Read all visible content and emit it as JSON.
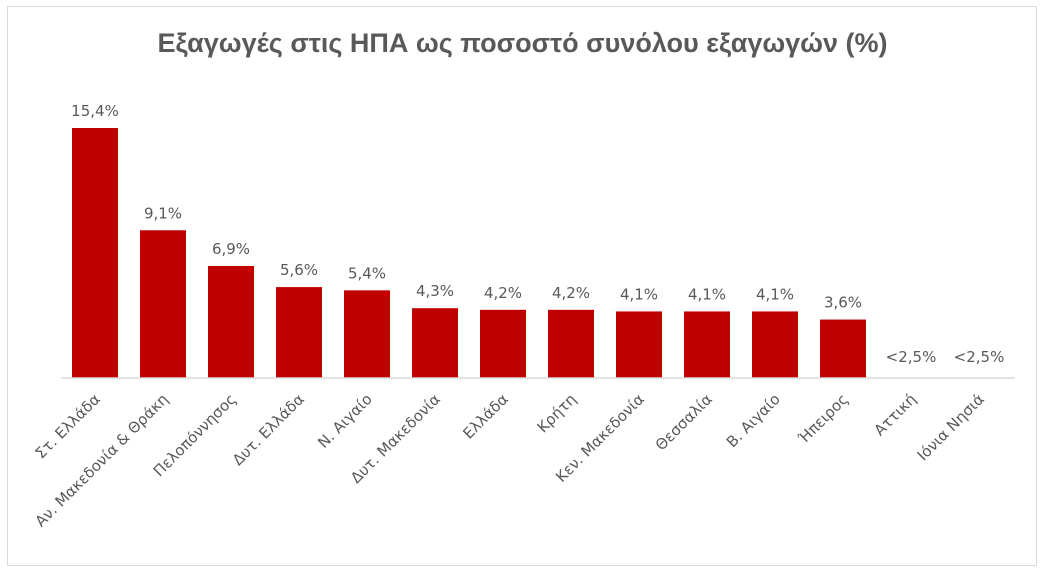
{
  "chart_data": {
    "type": "bar",
    "title": "Εξαγωγές στις ΗΠΑ ως ποσοστό συνόλου εξαγωγών (%)",
    "xlabel": "",
    "ylabel": "",
    "ylim": [
      0,
      16
    ],
    "grid": false,
    "bar_color": "#c00000",
    "categories": [
      "Στ. Ελλάδα",
      "Αν. Μακεδονία & Θράκη",
      "Πελοπόννησος",
      "Δυτ. Ελλάδα",
      "Ν. Αιγαίο",
      "Δυτ. Μακεδονία",
      "Ελλάδα",
      "Κρήτη",
      "Κεν. Μακεδονία",
      "Θεσσαλία",
      "Β. Αιγαίο",
      "Ήπειρος",
      "Αττική",
      "Ιόνια Νησιά"
    ],
    "values": [
      15.4,
      9.1,
      6.9,
      5.6,
      5.4,
      4.3,
      4.2,
      4.2,
      4.1,
      4.1,
      4.1,
      3.6,
      null,
      null
    ],
    "data_labels": [
      "15,4%",
      "9,1%",
      "6,9%",
      "5,6%",
      "5,4%",
      "4,3%",
      "4,2%",
      "4,2%",
      "4,1%",
      "4,1%",
      "4,1%",
      "3,6%",
      "<2,5%",
      "<2,5%"
    ]
  }
}
